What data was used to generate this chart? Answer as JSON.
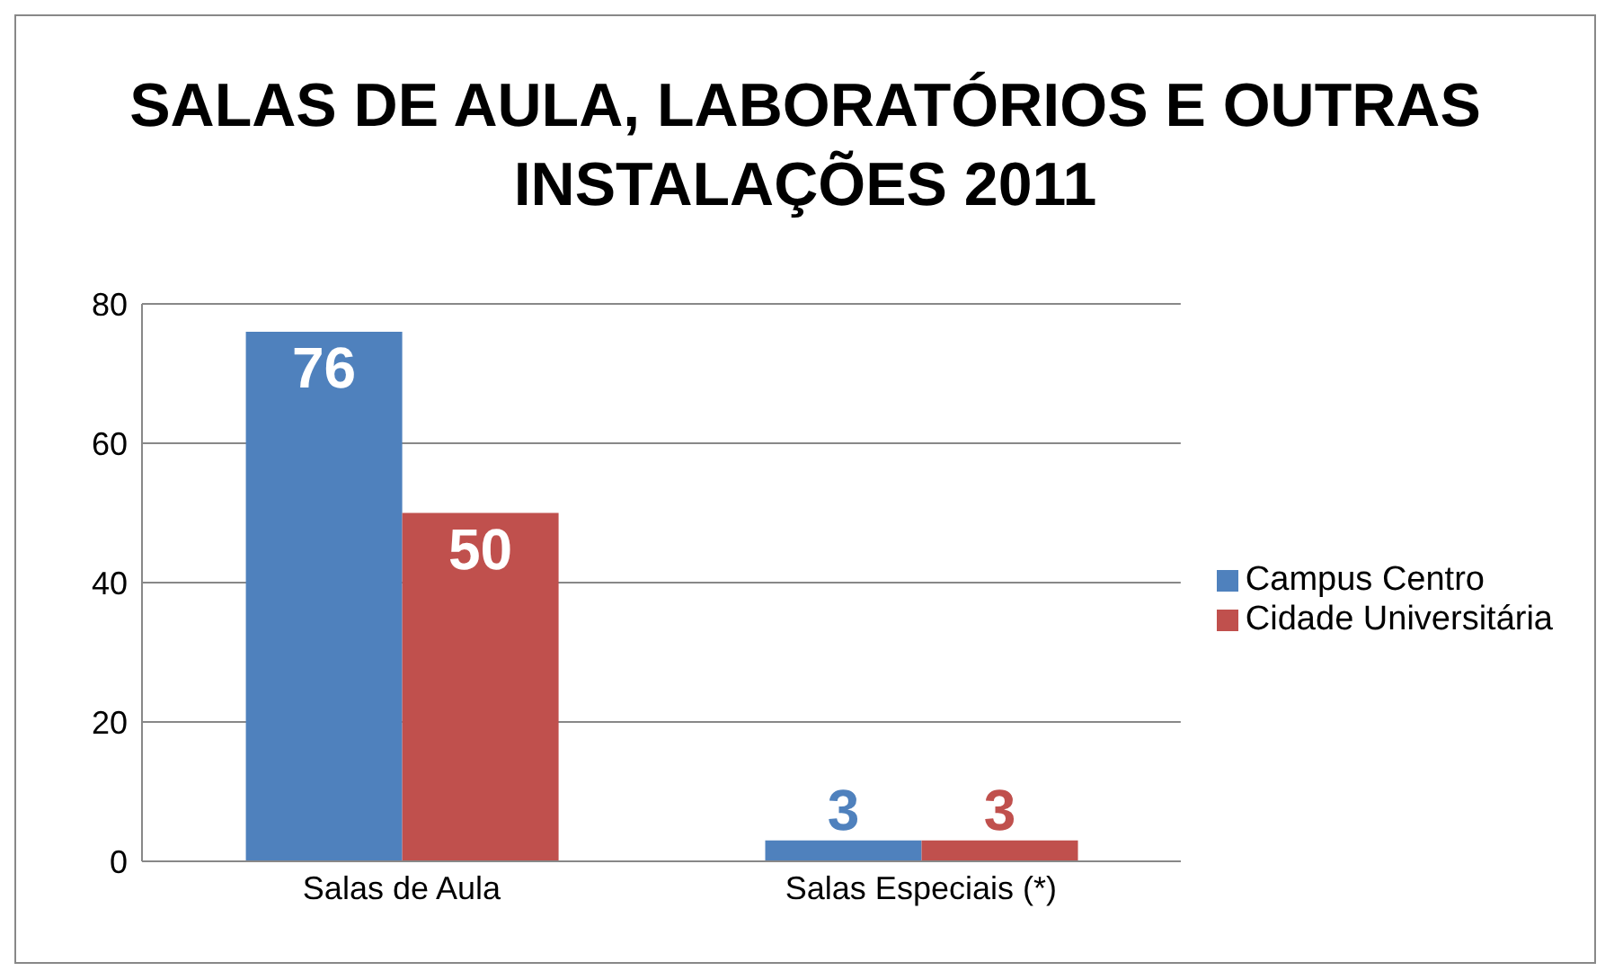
{
  "chart_data": {
    "type": "bar",
    "title": "SALAS DE AULA, LABORATÓRIOS E OUTRAS INSTALAÇÕES 2011",
    "categories": [
      "Salas de Aula",
      "Salas Especiais (*)"
    ],
    "series": [
      {
        "name": "Campus Centro",
        "color": "#4f81bd",
        "values": [
          76,
          3
        ]
      },
      {
        "name": "Cidade Universitária",
        "color": "#c0504d",
        "values": [
          50,
          3
        ]
      }
    ],
    "ylim": [
      0,
      80
    ],
    "yticks": [
      0,
      20,
      40,
      60,
      80
    ],
    "grid": "y",
    "legend": "right",
    "data_labels": true
  }
}
